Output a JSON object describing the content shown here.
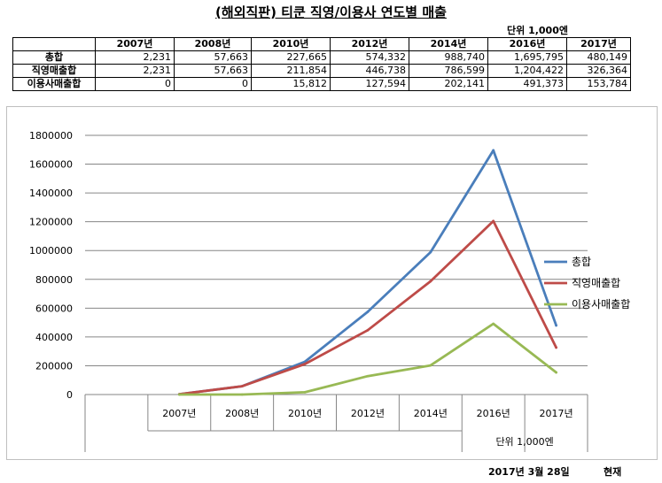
{
  "title": "(해외직판) 티쿤 직영/이용사 연도별 매출",
  "unit_label": "단위 1,000엔",
  "table": {
    "columns": [
      "2007년",
      "2008년",
      "2010년",
      "2012년",
      "2014년",
      "2016년",
      "2017년"
    ],
    "rows": [
      {
        "label": "총합",
        "values": [
          "2,231",
          "57,663",
          "227,665",
          "574,332",
          "988,740",
          "1,695,795",
          "480,149"
        ]
      },
      {
        "label": "직영매출합",
        "values": [
          "2,231",
          "57,663",
          "211,854",
          "446,738",
          "786,599",
          "1,204,422",
          "326,364"
        ]
      },
      {
        "label": "이용사매출합",
        "values": [
          "0",
          "0",
          "15,812",
          "127,594",
          "202,141",
          "491,373",
          "153,784"
        ]
      }
    ]
  },
  "chart_data": {
    "type": "line",
    "categories": [
      "2007년",
      "2008년",
      "2010년",
      "2012년",
      "2014년",
      "2016년",
      "2017년"
    ],
    "series": [
      {
        "name": "총합",
        "color": "#4a7ebb",
        "values": [
          2231,
          57663,
          227665,
          574332,
          988740,
          1695795,
          480149
        ]
      },
      {
        "name": "직영매출합",
        "color": "#be4b48",
        "values": [
          2231,
          57663,
          211854,
          446738,
          786599,
          1204422,
          326364
        ]
      },
      {
        "name": "이용사매출합",
        "color": "#98b954",
        "values": [
          0,
          0,
          15812,
          127594,
          202141,
          491373,
          153784
        ]
      }
    ],
    "yticks": [
      "0",
      "200000",
      "400000",
      "600000",
      "800000",
      "1000000",
      "1200000",
      "1400000",
      "1600000",
      "1800000"
    ],
    "ylim": [
      0,
      1800000
    ],
    "xlabel": "단위 1,000엔",
    "ylabel": "",
    "grid": true,
    "legend": "right"
  },
  "footer": {
    "date": "2017년 3월 28일",
    "suffix": "현재"
  }
}
